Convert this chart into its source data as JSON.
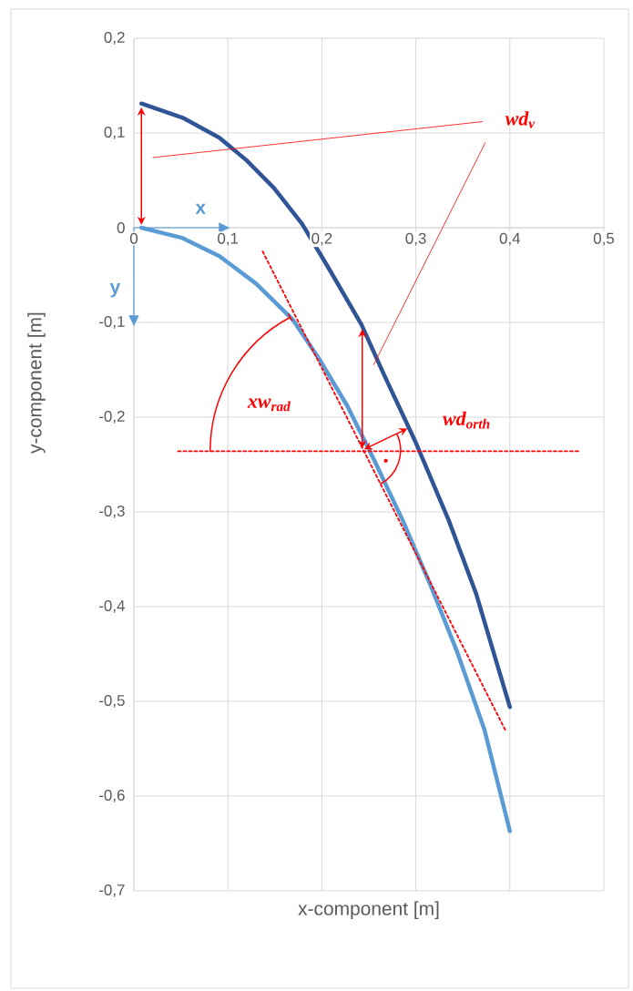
{
  "chart_data": {
    "type": "line",
    "xlabel": "x-component [m]",
    "ylabel": "y-component [m]",
    "xlim": [
      0,
      0.5
    ],
    "ylim": [
      -0.7,
      0.2
    ],
    "xticks": [
      0,
      {
        "value": 0.1,
        "label": "0,1"
      },
      {
        "value": 0.2,
        "label": "0,2"
      },
      {
        "value": 0.3,
        "label": "0,3"
      },
      {
        "value": 0.4,
        "label": "0,4"
      },
      {
        "value": 0.5,
        "label": "0,5"
      }
    ],
    "yticks": [
      {
        "value": -0.7,
        "label": "-0,7"
      },
      {
        "value": -0.6,
        "label": "-0,6"
      },
      {
        "value": -0.5,
        "label": "-0,5"
      },
      {
        "value": -0.4,
        "label": "-0,4"
      },
      {
        "value": -0.3,
        "label": "-0,3"
      },
      {
        "value": -0.2,
        "label": "-0,2"
      },
      {
        "value": -0.1,
        "label": "-0,1"
      },
      0,
      {
        "value": 0.1,
        "label": "0,1"
      },
      {
        "value": 0.2,
        "label": "0,2"
      }
    ],
    "grid": true,
    "series": [
      {
        "color": "#2f5597",
        "line_style": "solid",
        "x": [
          0.008,
          0.052,
          0.091,
          0.12,
          0.149,
          0.179,
          0.208,
          0.242,
          0.266,
          0.3,
          0.335,
          0.364,
          0.4
        ],
        "values": [
          0.131,
          0.116,
          0.095,
          0.071,
          0.042,
          0.004,
          -0.044,
          -0.102,
          -0.155,
          -0.227,
          -0.309,
          -0.386,
          -0.506
        ]
      },
      {
        "color": "#5b9bd5",
        "line_style": "solid",
        "x": [
          0.008,
          0.052,
          0.091,
          0.13,
          0.169,
          0.198,
          0.227,
          0.256,
          0.286,
          0.315,
          0.344,
          0.373,
          0.4
        ],
        "values": [
          0,
          -0.011,
          -0.03,
          -0.059,
          -0.097,
          -0.14,
          -0.188,
          -0.246,
          -0.309,
          -0.376,
          -0.448,
          -0.53,
          -0.637
        ]
      },
      {
        "color": "#ff0000",
        "line_style": "dashed",
        "x": [
          0.137,
          0.395
        ],
        "values": [
          -0.025,
          -0.53
        ]
      },
      {
        "color": "#ff0000",
        "line_style": "dashed",
        "x": [
          0.047,
          0.473
        ],
        "values": [
          -0.236,
          -0.236
        ]
      }
    ],
    "annotations": [
      "wd$_{v}$",
      "xw$_{rad}$",
      "wd$_{orth}$",
      "x",
      "y"
    ]
  }
}
